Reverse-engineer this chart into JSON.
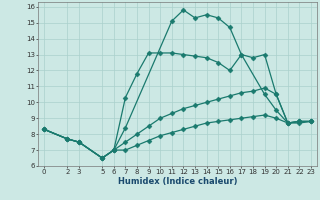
{
  "xlabel": "Humidex (Indice chaleur)",
  "xlim": [
    -0.5,
    23.5
  ],
  "ylim": [
    6,
    16.3
  ],
  "xticks": [
    0,
    2,
    3,
    5,
    6,
    7,
    8,
    9,
    10,
    11,
    12,
    13,
    14,
    15,
    16,
    17,
    18,
    19,
    20,
    21,
    22,
    23
  ],
  "yticks": [
    6,
    7,
    8,
    9,
    10,
    11,
    12,
    13,
    14,
    15,
    16
  ],
  "line_color": "#1a7a6e",
  "bg_color": "#cce8e4",
  "grid_color": "#aad0cc",
  "lines": [
    {
      "x": [
        0,
        2,
        3,
        5,
        6,
        7,
        11,
        12,
        13,
        14,
        15,
        16,
        17,
        19,
        20,
        21,
        22,
        23
      ],
      "y": [
        8.3,
        7.7,
        7.5,
        6.5,
        7.0,
        8.4,
        15.1,
        15.8,
        15.3,
        15.5,
        15.3,
        14.7,
        13.0,
        10.5,
        9.5,
        8.7,
        8.8,
        8.8
      ]
    },
    {
      "x": [
        0,
        2,
        3,
        5,
        6,
        7,
        8,
        9,
        10,
        11,
        12,
        13,
        14,
        15,
        16,
        17,
        18,
        19,
        20,
        21,
        22,
        23
      ],
      "y": [
        8.3,
        7.7,
        7.5,
        6.5,
        7.0,
        10.3,
        11.8,
        13.1,
        13.1,
        13.1,
        13.0,
        12.9,
        12.8,
        12.5,
        12.0,
        13.0,
        12.8,
        13.0,
        10.5,
        8.7,
        8.8,
        8.8
      ]
    },
    {
      "x": [
        0,
        2,
        3,
        5,
        6,
        7,
        8,
        9,
        10,
        11,
        12,
        13,
        14,
        15,
        16,
        17,
        18,
        19,
        20,
        21,
        22,
        23
      ],
      "y": [
        8.3,
        7.7,
        7.5,
        6.5,
        7.0,
        7.5,
        8.0,
        8.5,
        9.0,
        9.3,
        9.6,
        9.8,
        10.0,
        10.2,
        10.4,
        10.6,
        10.7,
        10.9,
        10.5,
        8.7,
        8.8,
        8.8
      ]
    },
    {
      "x": [
        0,
        2,
        3,
        5,
        6,
        7,
        8,
        9,
        10,
        11,
        12,
        13,
        14,
        15,
        16,
        17,
        18,
        19,
        20,
        21,
        22,
        23
      ],
      "y": [
        8.3,
        7.7,
        7.5,
        6.5,
        7.0,
        7.0,
        7.3,
        7.6,
        7.9,
        8.1,
        8.3,
        8.5,
        8.7,
        8.8,
        8.9,
        9.0,
        9.1,
        9.2,
        9.0,
        8.7,
        8.7,
        8.8
      ]
    }
  ],
  "marker": "D",
  "markersize": 2.5,
  "linewidth": 0.9,
  "tick_fontsize": 5,
  "xlabel_fontsize": 6,
  "xlabel_color": "#1a4a6e"
}
